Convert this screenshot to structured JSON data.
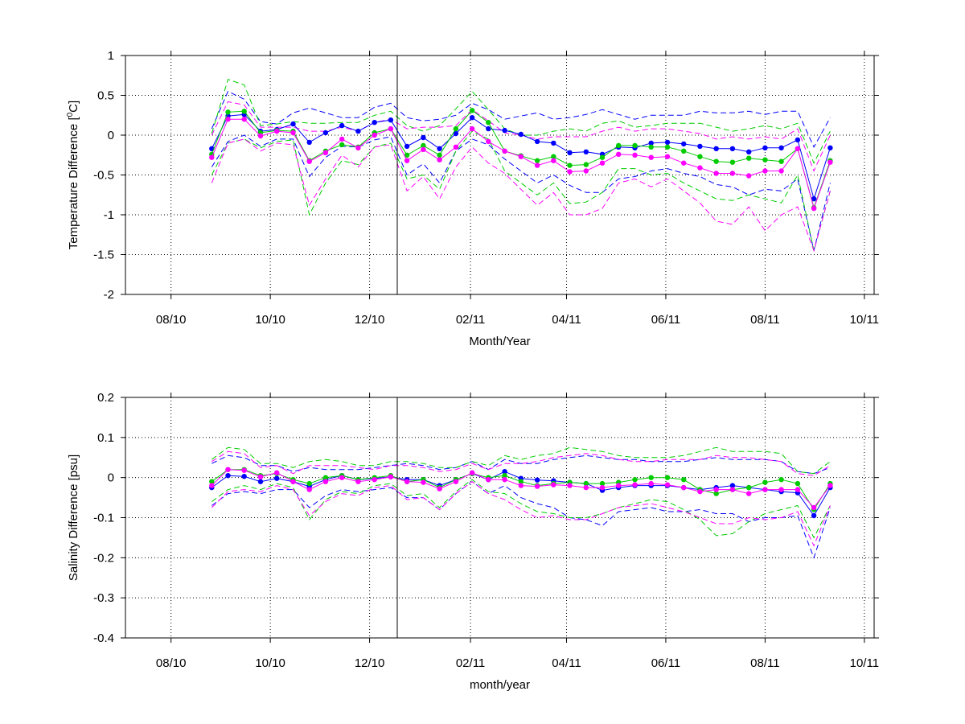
{
  "chart_data": [
    {
      "type": "line",
      "title": "",
      "xlabel": "Month/Year",
      "ylabel": "Temperature Difference [°C]",
      "ylabel_parts": [
        "Temperature Difference [",
        "0",
        "C]"
      ],
      "ylim": [
        -2,
        1
      ],
      "yticks": [
        -2,
        -1.5,
        -1,
        -0.5,
        0,
        0.5,
        1
      ],
      "ytick_labels": [
        "-2",
        "-1.5",
        "-1",
        "-0.5",
        "0",
        "0.5",
        "1"
      ],
      "xlim": [
        "2010-07-04",
        "2011-10-07"
      ],
      "xticks": [
        "2010-08-01",
        "2010-10-01",
        "2010-12-01",
        "2011-02-01",
        "2011-04-01",
        "2011-06-01",
        "2011-08-01",
        "2011-10-01"
      ],
      "xtick_labels": [
        "08/10",
        "10/10",
        "12/10",
        "02/11",
        "04/11",
        "06/11",
        "08/11",
        "10/11"
      ],
      "vline": "2010-12-18",
      "grid": true,
      "x": [
        "2010-08-26",
        "2010-09-05",
        "2010-09-15",
        "2010-09-25",
        "2010-10-05",
        "2010-10-15",
        "2010-10-25",
        "2010-11-04",
        "2010-11-14",
        "2010-11-24",
        "2010-12-04",
        "2010-12-14",
        "2010-12-24",
        "2011-01-03",
        "2011-01-13",
        "2011-01-23",
        "2011-02-02",
        "2011-02-12",
        "2011-02-22",
        "2011-03-04",
        "2011-03-14",
        "2011-03-24",
        "2011-04-03",
        "2011-04-13",
        "2011-04-23",
        "2011-05-03",
        "2011-05-13",
        "2011-05-23",
        "2011-06-02",
        "2011-06-12",
        "2011-06-22",
        "2011-07-02",
        "2011-07-12",
        "2011-07-22",
        "2011-08-01",
        "2011-08-11",
        "2011-08-21",
        "2011-08-31",
        "2011-09-10"
      ],
      "series": [
        {
          "color": "#0000ff",
          "values": [
            -0.17,
            0.24,
            0.26,
            0.05,
            0.07,
            0.14,
            -0.09,
            0.03,
            0.12,
            0.05,
            0.16,
            0.19,
            -0.14,
            -0.03,
            -0.17,
            0.02,
            0.22,
            0.08,
            0.06,
            0.01,
            -0.08,
            -0.1,
            -0.22,
            -0.21,
            -0.24,
            -0.15,
            -0.16,
            -0.1,
            -0.09,
            -0.11,
            -0.14,
            -0.17,
            -0.17,
            -0.21,
            -0.16,
            -0.16,
            -0.06,
            -0.8,
            -0.16
          ]
        },
        {
          "color": "#00cc00",
          "values": [
            -0.24,
            0.29,
            0.3,
            0.03,
            0.06,
            0.05,
            -0.32,
            -0.2,
            -0.12,
            -0.15,
            0.03,
            0.08,
            -0.25,
            -0.13,
            -0.25,
            0.08,
            0.31,
            0.16,
            -0.2,
            -0.26,
            -0.32,
            -0.27,
            -0.38,
            -0.37,
            -0.28,
            -0.13,
            -0.13,
            -0.15,
            -0.15,
            -0.2,
            -0.27,
            -0.33,
            -0.34,
            -0.29,
            -0.31,
            -0.33,
            -0.17,
            -0.91,
            -0.32
          ]
        },
        {
          "color": "#ff00ff",
          "values": [
            -0.28,
            0.2,
            0.2,
            -0.01,
            0.05,
            0.03,
            -0.33,
            -0.22,
            -0.05,
            -0.16,
            0.0,
            0.08,
            -0.32,
            -0.18,
            -0.31,
            -0.15,
            0.08,
            -0.08,
            -0.2,
            -0.27,
            -0.38,
            -0.32,
            -0.46,
            -0.45,
            -0.35,
            -0.24,
            -0.25,
            -0.28,
            -0.27,
            -0.35,
            -0.41,
            -0.48,
            -0.48,
            -0.51,
            -0.45,
            -0.45,
            -0.17,
            -0.92,
            -0.34
          ]
        }
      ],
      "bounds": [
        {
          "color": "#0000ff",
          "values": [
            0.08,
            0.55,
            0.45,
            0.17,
            0.14,
            0.28,
            0.34,
            0.28,
            0.22,
            0.22,
            0.35,
            0.4,
            0.22,
            0.18,
            0.2,
            0.25,
            0.4,
            0.32,
            0.2,
            0.24,
            0.28,
            0.2,
            0.22,
            0.26,
            0.32,
            0.26,
            0.2,
            0.25,
            0.25,
            0.25,
            0.3,
            0.28,
            0.28,
            0.3,
            0.26,
            0.3,
            0.3,
            -0.15,
            0.22
          ]
        },
        {
          "color": "#0000ff",
          "values": [
            -0.4,
            -0.08,
            0.0,
            -0.14,
            -0.05,
            -0.05,
            -0.52,
            -0.28,
            -0.14,
            -0.15,
            -0.06,
            -0.02,
            -0.5,
            -0.36,
            -0.6,
            -0.2,
            -0.05,
            -0.12,
            -0.3,
            -0.45,
            -0.6,
            -0.5,
            -0.63,
            -0.72,
            -0.72,
            -0.55,
            -0.52,
            -0.45,
            -0.42,
            -0.48,
            -0.52,
            -0.62,
            -0.65,
            -0.75,
            -0.68,
            -0.7,
            -0.55,
            -1.45,
            -0.6
          ]
        },
        {
          "color": "#00cc00",
          "values": [
            0.02,
            0.7,
            0.63,
            0.12,
            0.14,
            0.17,
            0.15,
            0.15,
            0.16,
            0.16,
            0.25,
            0.3,
            0.12,
            0.05,
            0.12,
            0.33,
            0.55,
            0.32,
            0.08,
            0.0,
            0.0,
            0.05,
            0.08,
            0.05,
            0.15,
            0.18,
            0.1,
            0.12,
            0.15,
            0.15,
            0.15,
            0.1,
            0.05,
            0.08,
            0.12,
            0.08,
            0.15,
            -0.35,
            0.05
          ]
        },
        {
          "color": "#00cc00",
          "values": [
            -0.5,
            -0.1,
            -0.05,
            -0.16,
            -0.08,
            -0.06,
            -1.0,
            -0.6,
            -0.32,
            -0.37,
            -0.15,
            -0.1,
            -0.55,
            -0.5,
            -0.68,
            -0.2,
            0.05,
            -0.05,
            -0.45,
            -0.6,
            -0.75,
            -0.6,
            -0.86,
            -0.84,
            -0.72,
            -0.42,
            -0.42,
            -0.5,
            -0.48,
            -0.6,
            -0.7,
            -0.8,
            -0.82,
            -0.75,
            -0.8,
            -0.85,
            -0.5,
            -1.45,
            -0.7
          ]
        },
        {
          "color": "#ff00ff",
          "values": [
            0.0,
            0.42,
            0.38,
            0.1,
            0.1,
            0.1,
            0.05,
            0.05,
            0.1,
            0.05,
            0.16,
            0.2,
            0.08,
            0.1,
            0.1,
            0.12,
            0.32,
            0.18,
            0.03,
            0.0,
            -0.05,
            -0.02,
            -0.02,
            -0.02,
            0.05,
            0.1,
            0.05,
            0.08,
            0.08,
            0.05,
            0.02,
            -0.05,
            -0.02,
            -0.05,
            -0.02,
            -0.05,
            0.08,
            -0.45,
            0.0
          ]
        },
        {
          "color": "#ff00ff",
          "values": [
            -0.6,
            -0.1,
            -0.05,
            -0.2,
            -0.1,
            -0.12,
            -0.88,
            -0.55,
            -0.25,
            -0.4,
            -0.15,
            -0.12,
            -0.7,
            -0.52,
            -0.8,
            -0.4,
            -0.15,
            -0.35,
            -0.48,
            -0.68,
            -0.88,
            -0.72,
            -1.0,
            -1.0,
            -0.92,
            -0.6,
            -0.55,
            -0.65,
            -0.55,
            -0.7,
            -0.85,
            -1.08,
            -1.12,
            -0.9,
            -1.2,
            -1.0,
            -0.9,
            -1.45,
            -0.7
          ]
        }
      ]
    },
    {
      "type": "line",
      "title": "",
      "xlabel": "month/year",
      "ylabel": "Salinity Difference [psu]",
      "ylim": [
        -0.4,
        0.2
      ],
      "yticks": [
        -0.4,
        -0.3,
        -0.2,
        -0.1,
        0,
        0.1,
        0.2
      ],
      "ytick_labels": [
        "-0.4",
        "-0.3",
        "-0.2",
        "-0.1",
        "0",
        "0.1",
        "0.2"
      ],
      "xlim": [
        "2010-07-04",
        "2011-10-07"
      ],
      "xticks": [
        "2010-08-01",
        "2010-10-01",
        "2010-12-01",
        "2011-02-01",
        "2011-04-01",
        "2011-06-01",
        "2011-08-01",
        "2011-10-01"
      ],
      "xtick_labels": [
        "08/10",
        "10/10",
        "12/10",
        "02/11",
        "04/11",
        "06/11",
        "08/11",
        "10/11"
      ],
      "vline": "2010-12-18",
      "grid": true,
      "x": [
        "2010-08-26",
        "2010-09-05",
        "2010-09-15",
        "2010-09-25",
        "2010-10-05",
        "2010-10-15",
        "2010-10-25",
        "2010-11-04",
        "2010-11-14",
        "2010-11-24",
        "2010-12-04",
        "2010-12-14",
        "2010-12-24",
        "2011-01-03",
        "2011-01-13",
        "2011-01-23",
        "2011-02-02",
        "2011-02-12",
        "2011-02-22",
        "2011-03-04",
        "2011-03-14",
        "2011-03-24",
        "2011-04-03",
        "2011-04-13",
        "2011-04-23",
        "2011-05-03",
        "2011-05-13",
        "2011-05-23",
        "2011-06-02",
        "2011-06-12",
        "2011-06-22",
        "2011-07-02",
        "2011-07-12",
        "2011-07-22",
        "2011-08-01",
        "2011-08-11",
        "2011-08-21",
        "2011-08-31",
        "2011-09-10"
      ],
      "series": [
        {
          "color": "#0000ff",
          "values": [
            -0.025,
            0.005,
            0.003,
            -0.01,
            -0.002,
            -0.01,
            -0.022,
            -0.005,
            0.005,
            -0.005,
            -0.002,
            0.002,
            -0.005,
            -0.005,
            -0.02,
            -0.005,
            0.01,
            -0.005,
            0.015,
            -0.002,
            -0.006,
            -0.008,
            -0.012,
            -0.015,
            -0.032,
            -0.025,
            -0.02,
            -0.02,
            -0.02,
            -0.025,
            -0.03,
            -0.025,
            -0.02,
            -0.025,
            -0.03,
            -0.035,
            -0.038,
            -0.095,
            -0.025
          ]
        },
        {
          "color": "#00cc00",
          "values": [
            -0.01,
            0.02,
            0.02,
            0.005,
            0.01,
            -0.005,
            -0.015,
            0.0,
            0.005,
            -0.005,
            0.0,
            0.005,
            -0.01,
            -0.005,
            -0.025,
            -0.005,
            0.01,
            0.0,
            0.005,
            -0.01,
            -0.02,
            -0.015,
            -0.012,
            -0.015,
            -0.015,
            -0.012,
            -0.005,
            0.0,
            0.0,
            -0.005,
            -0.03,
            -0.04,
            -0.03,
            -0.025,
            -0.012,
            -0.005,
            -0.015,
            -0.08,
            -0.015
          ]
        },
        {
          "color": "#ff00ff",
          "values": [
            -0.02,
            0.02,
            0.018,
            0.002,
            0.012,
            -0.01,
            -0.03,
            -0.01,
            0.0,
            -0.01,
            -0.005,
            0.002,
            -0.01,
            -0.012,
            -0.028,
            -0.01,
            0.012,
            -0.005,
            -0.005,
            -0.02,
            -0.022,
            -0.018,
            -0.02,
            -0.025,
            -0.025,
            -0.02,
            -0.018,
            -0.015,
            -0.018,
            -0.025,
            -0.035,
            -0.03,
            -0.03,
            -0.04,
            -0.03,
            -0.03,
            -0.03,
            -0.075,
            -0.02
          ]
        }
      ],
      "bounds": [
        {
          "color": "#0000ff",
          "values": [
            0.035,
            0.055,
            0.05,
            0.03,
            0.03,
            0.015,
            0.025,
            0.02,
            0.02,
            0.02,
            0.025,
            0.03,
            0.035,
            0.03,
            0.02,
            0.025,
            0.04,
            0.02,
            0.045,
            0.035,
            0.035,
            0.045,
            0.05,
            0.055,
            0.05,
            0.045,
            0.045,
            0.04,
            0.04,
            0.04,
            0.045,
            0.05,
            0.045,
            0.045,
            0.045,
            0.04,
            0.015,
            0.01,
            0.025
          ]
        },
        {
          "color": "#0000ff",
          "values": [
            -0.07,
            -0.04,
            -0.035,
            -0.04,
            -0.03,
            -0.03,
            -0.075,
            -0.045,
            -0.03,
            -0.035,
            -0.03,
            -0.025,
            -0.05,
            -0.05,
            -0.08,
            -0.04,
            -0.01,
            -0.04,
            -0.02,
            -0.05,
            -0.065,
            -0.075,
            -0.1,
            -0.105,
            -0.12,
            -0.085,
            -0.08,
            -0.075,
            -0.085,
            -0.085,
            -0.08,
            -0.09,
            -0.09,
            -0.11,
            -0.1,
            -0.1,
            -0.095,
            -0.2,
            -0.075
          ]
        },
        {
          "color": "#00cc00",
          "values": [
            0.045,
            0.075,
            0.07,
            0.035,
            0.035,
            0.025,
            0.04,
            0.045,
            0.04,
            0.03,
            0.03,
            0.04,
            0.04,
            0.035,
            0.025,
            0.025,
            0.04,
            0.03,
            0.055,
            0.045,
            0.055,
            0.06,
            0.075,
            0.07,
            0.065,
            0.055,
            0.05,
            0.05,
            0.05,
            0.055,
            0.065,
            0.075,
            0.065,
            0.065,
            0.065,
            0.06,
            0.015,
            0.01,
            0.04
          ]
        },
        {
          "color": "#00cc00",
          "values": [
            -0.06,
            -0.03,
            -0.02,
            -0.03,
            -0.015,
            -0.025,
            -0.105,
            -0.055,
            -0.035,
            -0.04,
            -0.02,
            -0.015,
            -0.045,
            -0.04,
            -0.075,
            -0.035,
            -0.005,
            -0.035,
            -0.04,
            -0.065,
            -0.085,
            -0.09,
            -0.1,
            -0.1,
            -0.09,
            -0.075,
            -0.065,
            -0.055,
            -0.06,
            -0.08,
            -0.105,
            -0.145,
            -0.14,
            -0.11,
            -0.09,
            -0.08,
            -0.07,
            -0.15,
            -0.07
          ]
        },
        {
          "color": "#ff00ff",
          "values": [
            0.04,
            0.065,
            0.06,
            0.025,
            0.03,
            0.01,
            0.03,
            0.03,
            0.03,
            0.025,
            0.02,
            0.03,
            0.03,
            0.025,
            0.015,
            0.02,
            0.035,
            0.02,
            0.035,
            0.035,
            0.04,
            0.05,
            0.055,
            0.06,
            0.055,
            0.045,
            0.04,
            0.04,
            0.045,
            0.045,
            0.045,
            0.055,
            0.05,
            0.05,
            0.045,
            0.04,
            0.01,
            0.005,
            0.03
          ]
        },
        {
          "color": "#ff00ff",
          "values": [
            -0.075,
            -0.035,
            -0.03,
            -0.035,
            -0.02,
            -0.03,
            -0.095,
            -0.06,
            -0.04,
            -0.045,
            -0.025,
            -0.02,
            -0.055,
            -0.05,
            -0.08,
            -0.04,
            -0.01,
            -0.04,
            -0.055,
            -0.08,
            -0.1,
            -0.095,
            -0.105,
            -0.105,
            -0.09,
            -0.075,
            -0.07,
            -0.065,
            -0.075,
            -0.085,
            -0.1,
            -0.115,
            -0.115,
            -0.1,
            -0.105,
            -0.1,
            -0.085,
            -0.17,
            -0.07
          ]
        }
      ]
    }
  ]
}
